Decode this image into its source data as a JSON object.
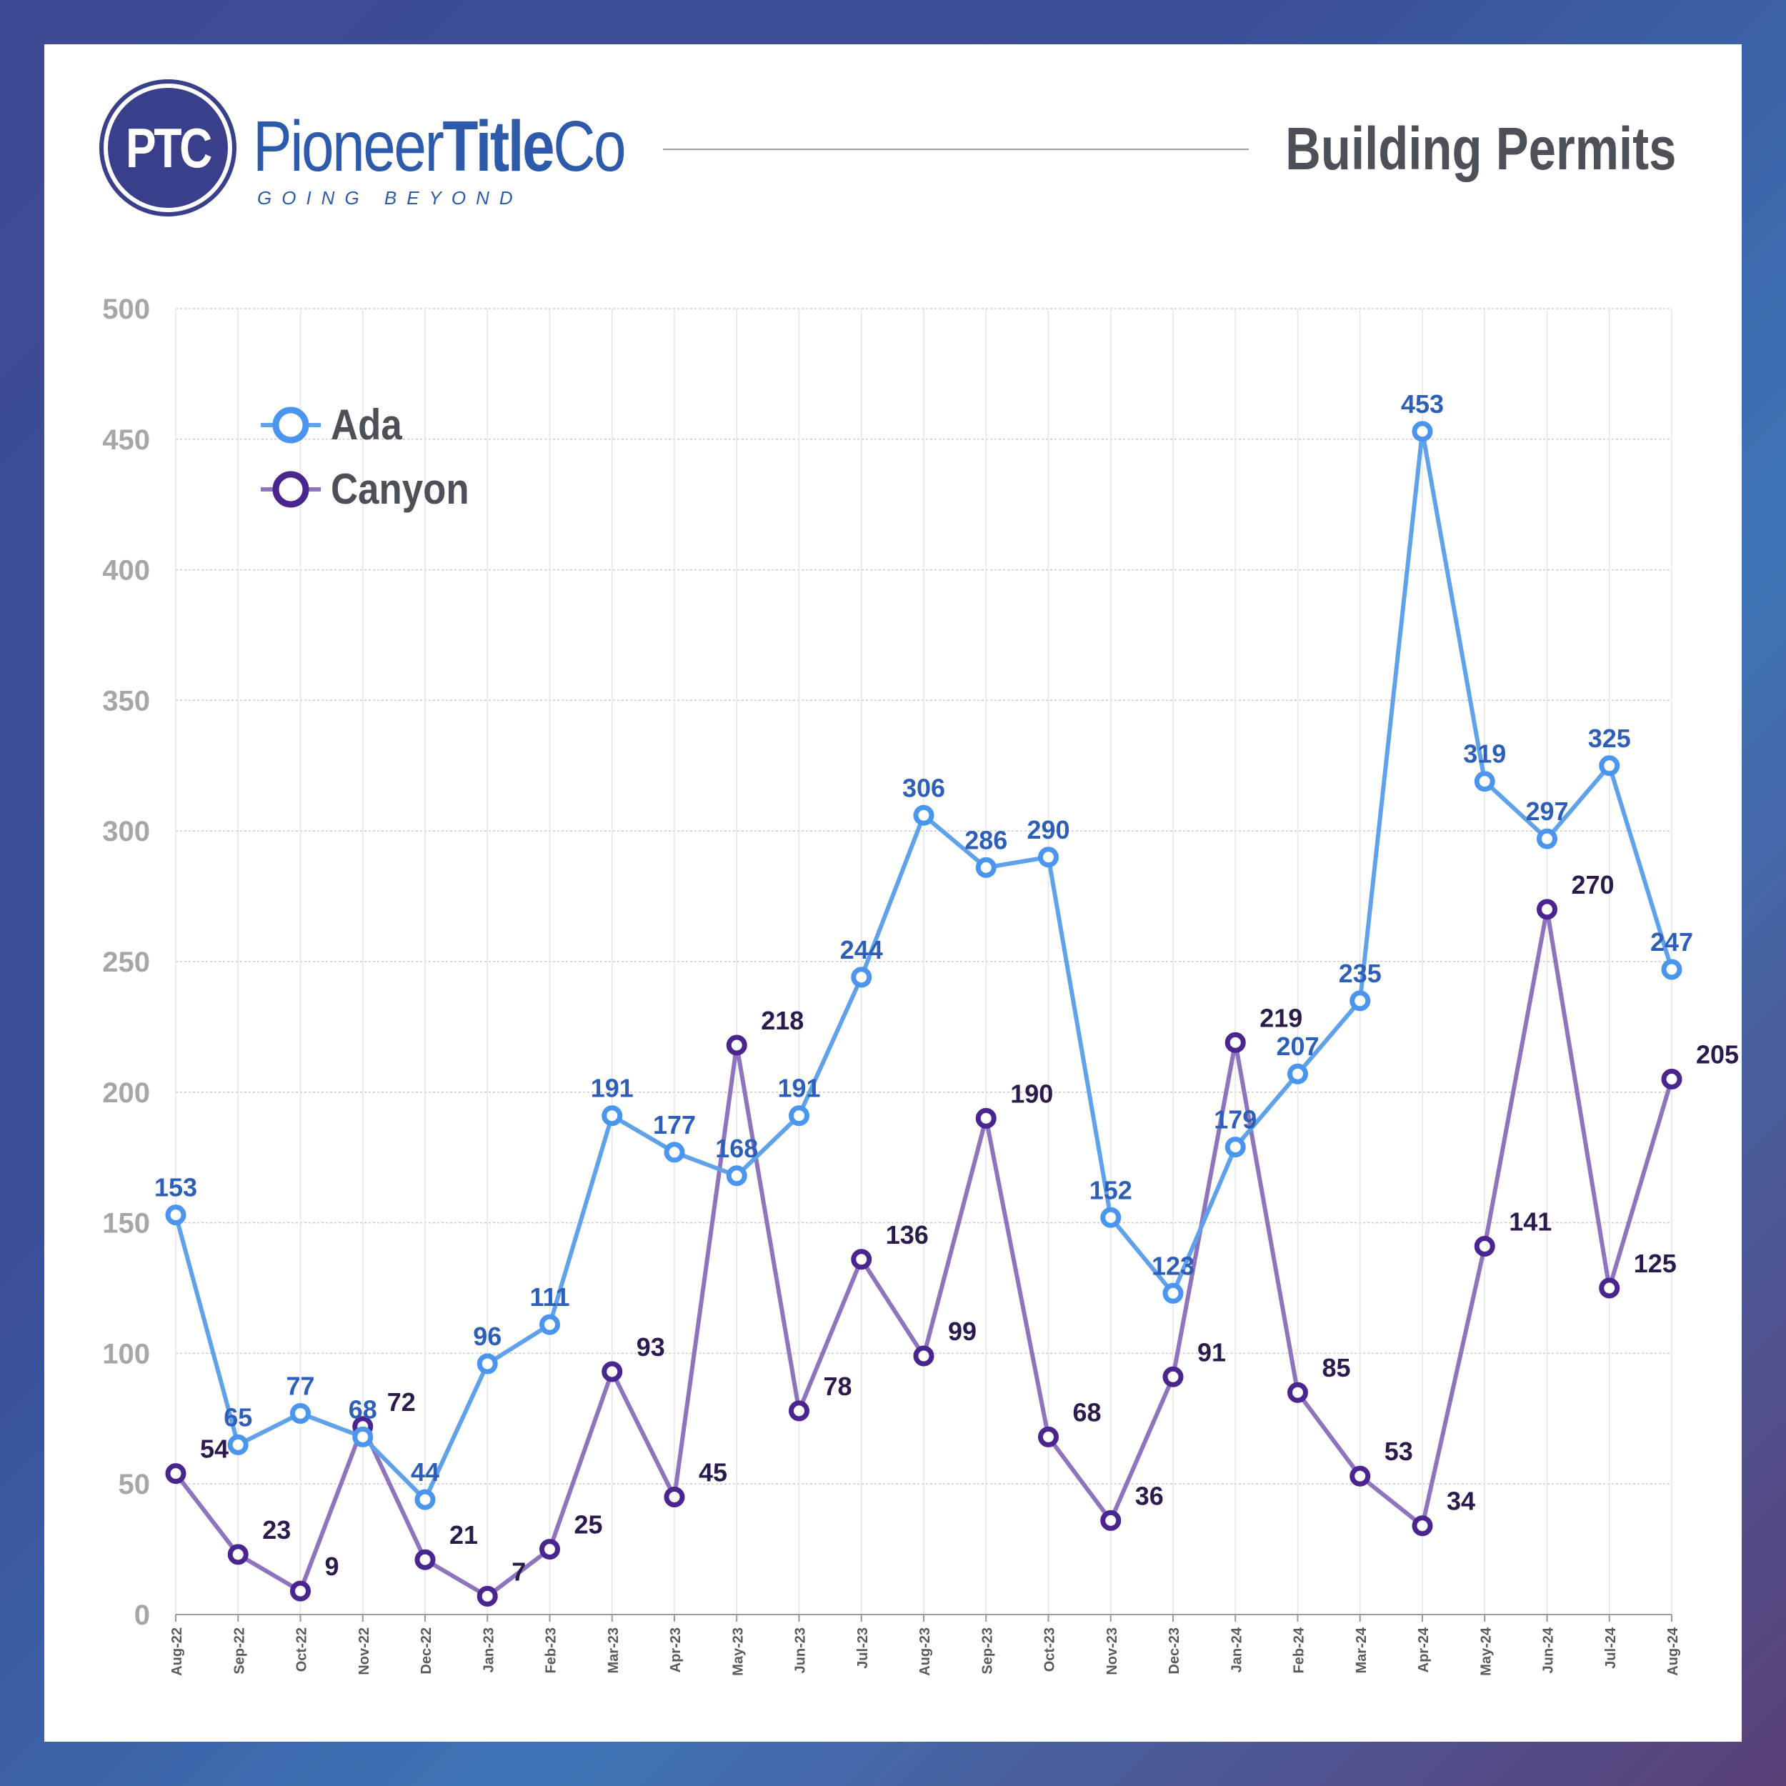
{
  "brand": {
    "mark": "PTC",
    "name_light_1": "Pioneer",
    "name_bold": "Title",
    "name_light_2": "Co",
    "tagline": "GOING BEYOND"
  },
  "page_title": "Building Permits",
  "colors": {
    "ada_line": "#5fa2ea",
    "ada_marker": "#4a96ee",
    "ada_label": "#2d5fb8",
    "canyon_line": "#8e73bd",
    "canyon_marker": "#4a2590",
    "canyon_label": "#2b1b4d",
    "axis_text": "#a6a6a6"
  },
  "legend": [
    {
      "name": "Ada",
      "series": "ada"
    },
    {
      "name": "Canyon",
      "series": "canyon"
    }
  ],
  "chart_data": {
    "type": "line",
    "title": "Building Permits",
    "xlabel": "",
    "ylabel": "",
    "ylim": [
      0,
      500
    ],
    "yticks": [
      0,
      50,
      100,
      150,
      200,
      250,
      300,
      350,
      400,
      450,
      500
    ],
    "grid": true,
    "legend_position": "top-left",
    "categories": [
      "Aug-22",
      "Sep-22",
      "Oct-22",
      "Nov-22",
      "Dec-22",
      "Jan-23",
      "Feb-23",
      "Mar-23",
      "Apr-23",
      "May-23",
      "Jun-23",
      "Jul-23",
      "Aug-23",
      "Sep-23",
      "Oct-23",
      "Nov-23",
      "Dec-23",
      "Jan-24",
      "Feb-24",
      "Mar-24",
      "Apr-24",
      "May-24",
      "Jun-24",
      "Jul-24",
      "Aug-24"
    ],
    "series": [
      {
        "name": "Ada",
        "key": "ada",
        "values": [
          153,
          65,
          77,
          68,
          44,
          96,
          111,
          191,
          177,
          168,
          191,
          244,
          306,
          286,
          290,
          152,
          123,
          179,
          207,
          235,
          453,
          319,
          297,
          325,
          247
        ]
      },
      {
        "name": "Canyon",
        "key": "canyon",
        "values": [
          54,
          23,
          9,
          72,
          21,
          7,
          25,
          93,
          45,
          218,
          78,
          136,
          99,
          190,
          68,
          36,
          91,
          219,
          85,
          53,
          34,
          141,
          270,
          125,
          205
        ]
      }
    ]
  }
}
